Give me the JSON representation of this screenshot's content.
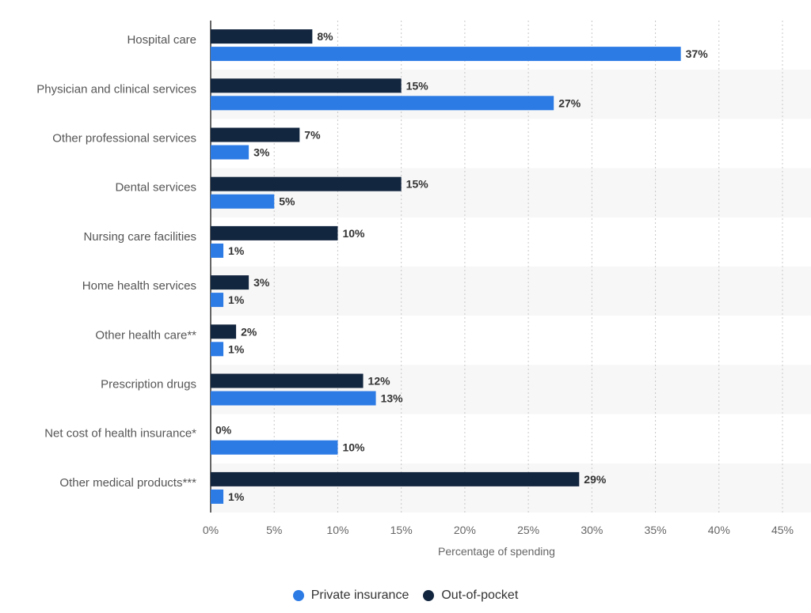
{
  "chart_data": {
    "type": "bar",
    "orientation": "horizontal",
    "categories": [
      "Hospital care",
      "Physician and clinical services",
      "Other professional services",
      "Dental services",
      "Nursing care facilities",
      "Home health services",
      "Other health care**",
      "Prescription drugs",
      "Net cost of health insurance*",
      "Other medical products***"
    ],
    "series": [
      {
        "name": "Out-of-pocket",
        "color": "#13263f",
        "values": [
          8,
          15,
          7,
          15,
          10,
          3,
          2,
          12,
          0,
          29
        ]
      },
      {
        "name": "Private insurance",
        "color": "#2c7be5",
        "values": [
          37,
          27,
          3,
          5,
          1,
          1,
          1,
          13,
          10,
          1
        ]
      }
    ],
    "xlabel": "Percentage of spending",
    "xlim": [
      0,
      45
    ],
    "xticks": [
      0,
      5,
      10,
      15,
      20,
      25,
      30,
      35,
      40,
      45
    ],
    "tick_suffix": "%",
    "grid": true,
    "legend_position": "bottom",
    "legend_order": [
      "Private insurance",
      "Out-of-pocket"
    ]
  }
}
